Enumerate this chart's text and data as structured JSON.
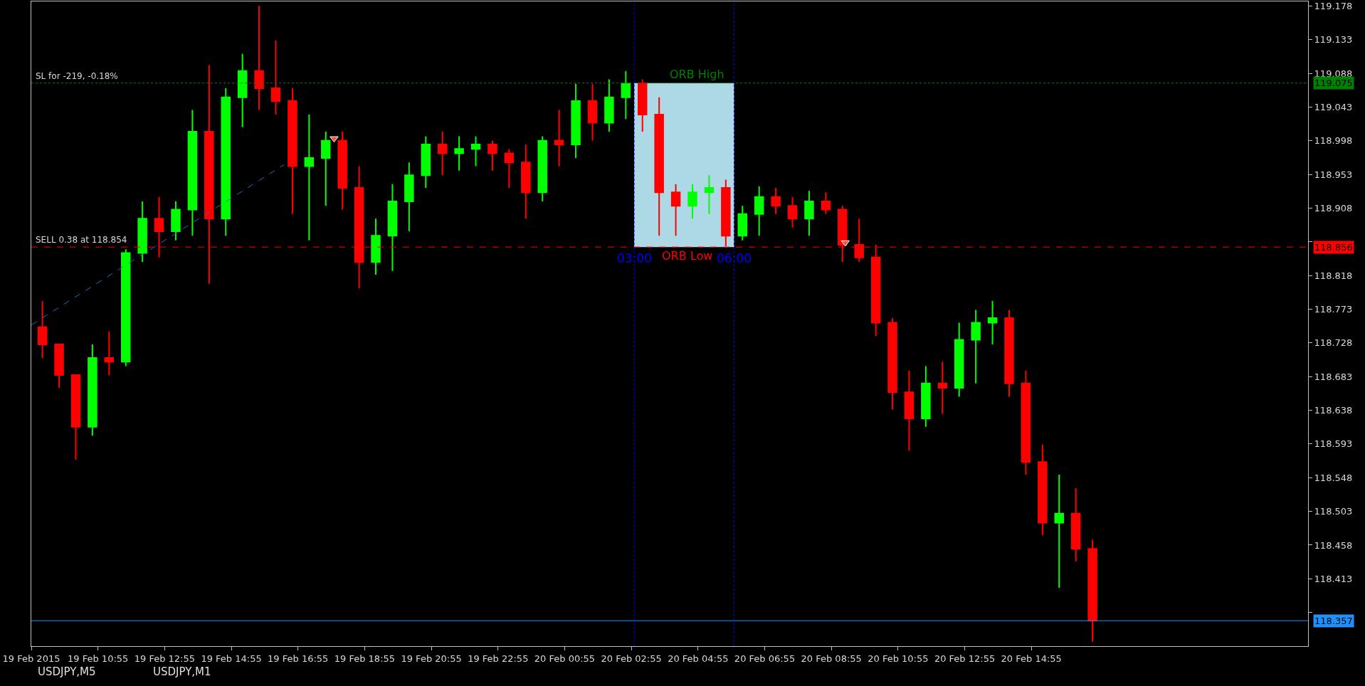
{
  "chart_data": {
    "type": "candlestick",
    "series": [
      {
        "type": "bar",
        "color": "#add8e6",
        "x": [
          "2015-02-20T04:30"
        ],
        "base": [
          118.856
        ],
        "values": [
          0.219
        ]
      },
      {
        "type": "line",
        "color": "#1e6fbf",
        "line_style": "dashed",
        "x": [
          "2015-02-19T08:55",
          "2015-02-19T16:30"
        ],
        "values": [
          118.752,
          118.966
        ]
      },
      {
        "type": "scatter",
        "color": "#ff5030",
        "marker": "triangle",
        "x": [
          "2015-02-19T18:00",
          "2015-02-20T09:20"
        ],
        "values": [
          119.001,
          118.862
        ]
      },
      {
        "x": [
          "2015-02-19T09:15",
          "2015-02-19T09:45",
          "2015-02-19T10:15",
          "2015-02-19T10:45",
          "2015-02-19T11:15",
          "2015-02-19T11:45",
          "2015-02-19T12:15",
          "2015-02-19T12:45",
          "2015-02-19T13:15",
          "2015-02-19T13:45",
          "2015-02-19T14:15",
          "2015-02-19T14:45",
          "2015-02-19T15:15",
          "2015-02-19T15:45",
          "2015-02-19T16:15",
          "2015-02-19T16:45",
          "2015-02-19T17:15",
          "2015-02-19T17:45",
          "2015-02-19T18:15",
          "2015-02-19T18:45",
          "2015-02-19T19:15",
          "2015-02-19T19:45",
          "2015-02-19T20:15",
          "2015-02-19T20:45",
          "2015-02-19T21:15",
          "2015-02-19T21:45",
          "2015-02-19T22:15",
          "2015-02-19T22:45",
          "2015-02-19T23:15",
          "2015-02-19T23:45",
          "2015-02-20T00:15",
          "2015-02-20T00:45",
          "2015-02-20T01:15",
          "2015-02-20T01:45",
          "2015-02-20T02:15",
          "2015-02-20T02:45",
          "2015-02-20T03:15",
          "2015-02-20T03:45",
          "2015-02-20T04:15",
          "2015-02-20T04:45",
          "2015-02-20T05:15",
          "2015-02-20T05:45",
          "2015-02-20T06:15",
          "2015-02-20T06:45",
          "2015-02-20T07:15",
          "2015-02-20T07:45",
          "2015-02-20T08:15",
          "2015-02-20T08:45",
          "2015-02-20T09:15",
          "2015-02-20T09:45",
          "2015-02-20T10:15",
          "2015-02-20T10:45",
          "2015-02-20T11:15",
          "2015-02-20T11:45",
          "2015-02-20T12:15",
          "2015-02-20T12:45",
          "2015-02-20T13:15",
          "2015-02-20T13:45",
          "2015-02-20T14:15",
          "2015-02-20T14:45",
          "2015-02-20T15:15",
          "2015-02-20T15:45",
          "2015-02-20T16:15",
          "2015-02-20T16:45"
        ],
        "ohlc": [
          [
            118.749,
            118.784,
            118.708,
            118.726
          ],
          [
            118.726,
            118.726,
            118.668,
            118.685
          ],
          [
            118.685,
            118.685,
            118.572,
            118.616
          ],
          [
            118.616,
            118.726,
            118.604,
            118.708
          ],
          [
            118.708,
            118.743,
            118.685,
            118.703
          ],
          [
            118.703,
            118.853,
            118.697,
            118.848
          ],
          [
            118.848,
            118.917,
            118.836,
            118.894
          ],
          [
            118.894,
            118.923,
            118.842,
            118.877
          ],
          [
            118.877,
            118.917,
            118.865,
            118.906
          ],
          [
            118.906,
            119.039,
            118.871,
            119.01
          ],
          [
            119.01,
            119.099,
            118.807,
            118.894
          ],
          [
            118.894,
            119.068,
            118.871,
            119.056
          ],
          [
            119.056,
            119.114,
            119.016,
            119.091
          ],
          [
            119.091,
            119.178,
            119.039,
            119.068
          ],
          [
            119.068,
            119.132,
            119.033,
            119.051
          ],
          [
            119.051,
            119.068,
            118.9,
            118.964
          ],
          [
            118.964,
            119.033,
            118.865,
            118.975
          ],
          [
            118.975,
            119.01,
            118.911,
            118.998
          ],
          [
            118.998,
            119.01,
            118.906,
            118.935
          ],
          [
            118.935,
            118.964,
            118.801,
            118.836
          ],
          [
            118.836,
            118.894,
            118.819,
            118.871
          ],
          [
            118.871,
            118.94,
            118.824,
            118.917
          ],
          [
            118.917,
            118.969,
            118.877,
            118.952
          ],
          [
            118.952,
            119.004,
            118.935,
            118.993
          ],
          [
            118.993,
            119.01,
            118.952,
            118.981
          ],
          [
            118.981,
            119.004,
            118.958,
            118.987
          ],
          [
            118.987,
            119.004,
            118.964,
            118.993
          ],
          [
            118.993,
            118.998,
            118.958,
            118.981
          ],
          [
            118.981,
            118.987,
            118.935,
            118.969
          ],
          [
            118.969,
            118.993,
            118.894,
            118.929
          ],
          [
            118.929,
            119.004,
            118.917,
            118.998
          ],
          [
            118.998,
            119.039,
            118.964,
            118.993
          ],
          [
            118.993,
            119.074,
            118.975,
            119.051
          ],
          [
            119.051,
            119.074,
            118.998,
            119.022
          ],
          [
            119.022,
            119.08,
            119.01,
            119.056
          ],
          [
            119.056,
            119.091,
            119.027,
            119.074
          ],
          [
            119.074,
            119.08,
            119.01,
            119.033
          ],
          [
            119.033,
            119.056,
            118.871,
            118.929
          ],
          [
            118.929,
            118.94,
            118.871,
            118.911
          ],
          [
            118.911,
            118.94,
            118.894,
            118.929
          ],
          [
            118.929,
            118.952,
            118.9,
            118.935
          ],
          [
            118.935,
            118.946,
            118.857,
            118.871
          ],
          [
            118.871,
            118.911,
            118.865,
            118.9
          ],
          [
            118.9,
            118.937,
            118.871,
            118.923
          ],
          [
            118.923,
            118.935,
            118.9,
            118.911
          ],
          [
            118.911,
            118.923,
            118.882,
            118.894
          ],
          [
            118.894,
            118.931,
            118.871,
            118.917
          ],
          [
            118.917,
            118.929,
            118.9,
            118.906
          ],
          [
            118.906,
            118.911,
            118.836,
            118.859
          ],
          [
            118.859,
            118.894,
            118.836,
            118.842
          ],
          [
            118.842,
            118.859,
            118.737,
            118.755
          ],
          [
            118.755,
            118.761,
            118.639,
            118.662
          ],
          [
            118.662,
            118.691,
            118.584,
            118.627
          ],
          [
            118.627,
            118.697,
            118.616,
            118.674
          ],
          [
            118.674,
            118.703,
            118.633,
            118.668
          ],
          [
            118.668,
            118.755,
            118.656,
            118.732
          ],
          [
            118.732,
            118.772,
            118.674,
            118.755
          ],
          [
            118.755,
            118.784,
            118.726,
            118.761
          ],
          [
            118.761,
            118.772,
            118.656,
            118.674
          ],
          [
            118.674,
            118.691,
            118.552,
            118.569
          ],
          [
            118.569,
            118.592,
            118.471,
            118.488
          ],
          [
            118.488,
            118.552,
            118.401,
            118.5
          ],
          [
            118.5,
            118.534,
            118.436,
            118.453
          ],
          [
            118.453,
            118.465,
            118.329,
            118.357
          ]
        ],
        "colors": [
          "#ff0000",
          "#ff0000",
          "#ff0000",
          "#00ff00",
          "#ff0000",
          "#00ff00",
          "#00ff00",
          "#ff0000",
          "#00ff00",
          "#00ff00",
          "#ff0000",
          "#00ff00",
          "#00ff00",
          "#ff0000",
          "#ff0000",
          "#ff0000",
          "#00ff00",
          "#00ff00",
          "#ff0000",
          "#ff0000",
          "#00ff00",
          "#00ff00",
          "#00ff00",
          "#00ff00",
          "#ff0000",
          "#00ff00",
          "#00ff00",
          "#ff0000",
          "#ff0000",
          "#ff0000",
          "#00ff00",
          "#ff0000",
          "#00ff00",
          "#ff0000",
          "#00ff00",
          "#00ff00",
          "#ff0000",
          "#ff0000",
          "#ff0000",
          "#00ff00",
          "#00ff00",
          "#ff0000",
          "#00ff00",
          "#00ff00",
          "#ff0000",
          "#ff0000",
          "#00ff00",
          "#ff0000",
          "#ff0000",
          "#ff0000",
          "#ff0000",
          "#ff0000",
          "#ff0000",
          "#00ff00",
          "#ff0000",
          "#00ff00",
          "#00ff00",
          "#00ff00",
          "#ff0000",
          "#ff0000",
          "#ff0000",
          "#00ff00",
          "#ff0000",
          "#ff0000"
        ]
      }
    ],
    "xlim": [
      "2015-02-19T08:55",
      "2015-02-20T23:13"
    ],
    "xticks": [
      {
        "value": "2015-02-19T08:55",
        "label": "19 Feb 2015"
      },
      {
        "value": "2015-02-19T10:55",
        "label": "19 Feb 10:55"
      },
      {
        "value": "2015-02-19T12:55",
        "label": "19 Feb 12:55"
      },
      {
        "value": "2015-02-19T14:55",
        "label": "19 Feb 14:55"
      },
      {
        "value": "2015-02-19T16:55",
        "label": "19 Feb 16:55"
      },
      {
        "value": "2015-02-19T18:55",
        "label": "19 Feb 18:55"
      },
      {
        "value": "2015-02-19T20:55",
        "label": "19 Feb 20:55"
      },
      {
        "value": "2015-02-19T22:55",
        "label": "19 Feb 22:55"
      },
      {
        "value": "2015-02-20T00:55",
        "label": "20 Feb 00:55"
      },
      {
        "value": "2015-02-20T02:55",
        "label": "20 Feb 02:55"
      },
      {
        "value": "2015-02-20T04:55",
        "label": "20 Feb 04:55"
      },
      {
        "value": "2015-02-20T06:55",
        "label": "20 Feb 06:55"
      },
      {
        "value": "2015-02-20T08:55",
        "label": "20 Feb 08:55"
      },
      {
        "value": "2015-02-20T10:55",
        "label": "20 Feb 10:55"
      },
      {
        "value": "2015-02-20T12:55",
        "label": "20 Feb 12:55"
      },
      {
        "value": "2015-02-20T14:55",
        "label": "20 Feb 14:55"
      }
    ],
    "ylim": [
      118.323,
      119.184
    ],
    "yticks": [
      {
        "value": 118.368,
        "label": null
      },
      118.413,
      118.458,
      118.503,
      118.548,
      118.593,
      118.638,
      118.683,
      118.728,
      118.773,
      118.818,
      {
        "value": 118.863,
        "label": null
      },
      118.908,
      118.953,
      118.998,
      119.043,
      119.088,
      119.133,
      119.178
    ],
    "grid": false,
    "ref_lines": [
      {
        "axis": "y",
        "value": 119.075,
        "label": "119.075",
        "color": "#008000",
        "line_style": "dotted"
      },
      {
        "axis": "y",
        "value": 118.856,
        "label": "118.856",
        "color": "#ff0000",
        "line_style": "dashed"
      },
      {
        "axis": "y",
        "value": 118.357,
        "label": "118.357",
        "color": "#1e90ff",
        "line_style": "solid"
      },
      {
        "axis": "x",
        "value": "2015-02-20T03:00",
        "label": "03:00",
        "color": "#0000ff",
        "line_style": "dotted"
      },
      {
        "axis": "x",
        "value": "2015-02-20T06:00",
        "label": "06:00",
        "color": "#0000ff",
        "line_style": "dotted"
      }
    ],
    "annotations": [
      {
        "text": "SL for -219, -0.18%",
        "x": "2015-02-19T09:00",
        "y": 119.075
      },
      {
        "text": "SELL 0.38 at 118.854",
        "x": "2015-02-19T09:00",
        "y": 118.856
      },
      {
        "text": "ORB High",
        "x": "2015-02-20T04:53",
        "y": 119.075
      },
      {
        "text": "ORB Low",
        "x": "2015-02-20T04:35",
        "y": 118.856
      },
      "USDJPY,M5",
      "USDJPY,M1"
    ]
  }
}
